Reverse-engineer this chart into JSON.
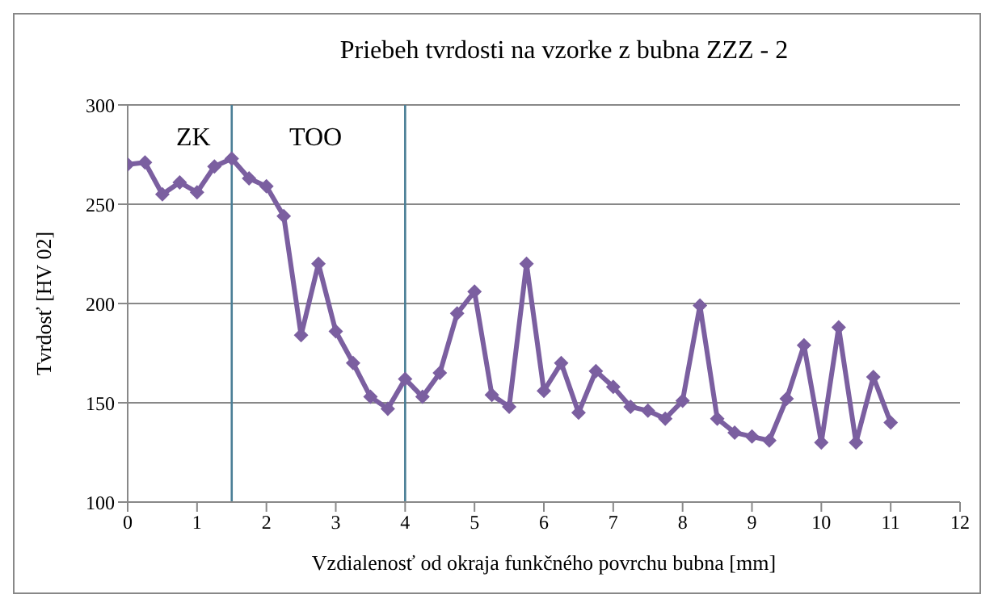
{
  "chart_data": {
    "type": "line",
    "title": "Priebeh tvrdosti na vzorke z bubna ZZZ - 2",
    "xlabel": "Vzdialenosť od okraja funkčného povrchu bubna [mm]",
    "ylabel": "Tvrdosť  [HV 02]",
    "x": [
      0,
      0.25,
      0.5,
      0.75,
      1,
      1.25,
      1.5,
      1.75,
      2,
      2.25,
      2.5,
      2.75,
      3,
      3.25,
      3.5,
      3.75,
      4,
      4.25,
      4.5,
      4.75,
      5,
      5.25,
      5.5,
      5.75,
      6,
      6.25,
      6.5,
      6.75,
      7,
      7.25,
      7.5,
      7.75,
      8,
      8.25,
      8.5,
      8.75,
      9,
      9.25,
      9.5,
      9.75,
      10,
      10.25,
      10.5,
      10.75,
      11
    ],
    "series": [
      {
        "color": "#7b5fa0",
        "values": [
          270,
          271,
          255,
          261,
          256,
          269,
          273,
          263,
          259,
          244,
          184,
          220,
          186,
          170,
          153,
          147,
          162,
          153,
          165,
          195,
          206,
          154,
          148,
          220,
          156,
          170,
          145,
          166,
          158,
          148,
          146,
          142,
          151,
          199,
          142,
          135,
          133,
          131,
          152,
          179,
          130,
          188,
          130,
          163,
          140
        ]
      }
    ],
    "xlim": [
      0,
      12
    ],
    "xticks": [
      0,
      1,
      2,
      3,
      4,
      5,
      6,
      7,
      8,
      9,
      10,
      11,
      12
    ],
    "ylim": [
      100,
      300
    ],
    "yticks": [
      100,
      150,
      200,
      250,
      300
    ],
    "grid": "y",
    "legend": false,
    "marker": "diamond",
    "line_style": "solid",
    "ref_lines": [
      {
        "axis": "x",
        "value": 1.5,
        "color": "#4a7e96"
      },
      {
        "axis": "x",
        "value": 4,
        "color": "#4a7e96"
      }
    ],
    "annotations": [
      "ZK",
      "TOO"
    ]
  }
}
